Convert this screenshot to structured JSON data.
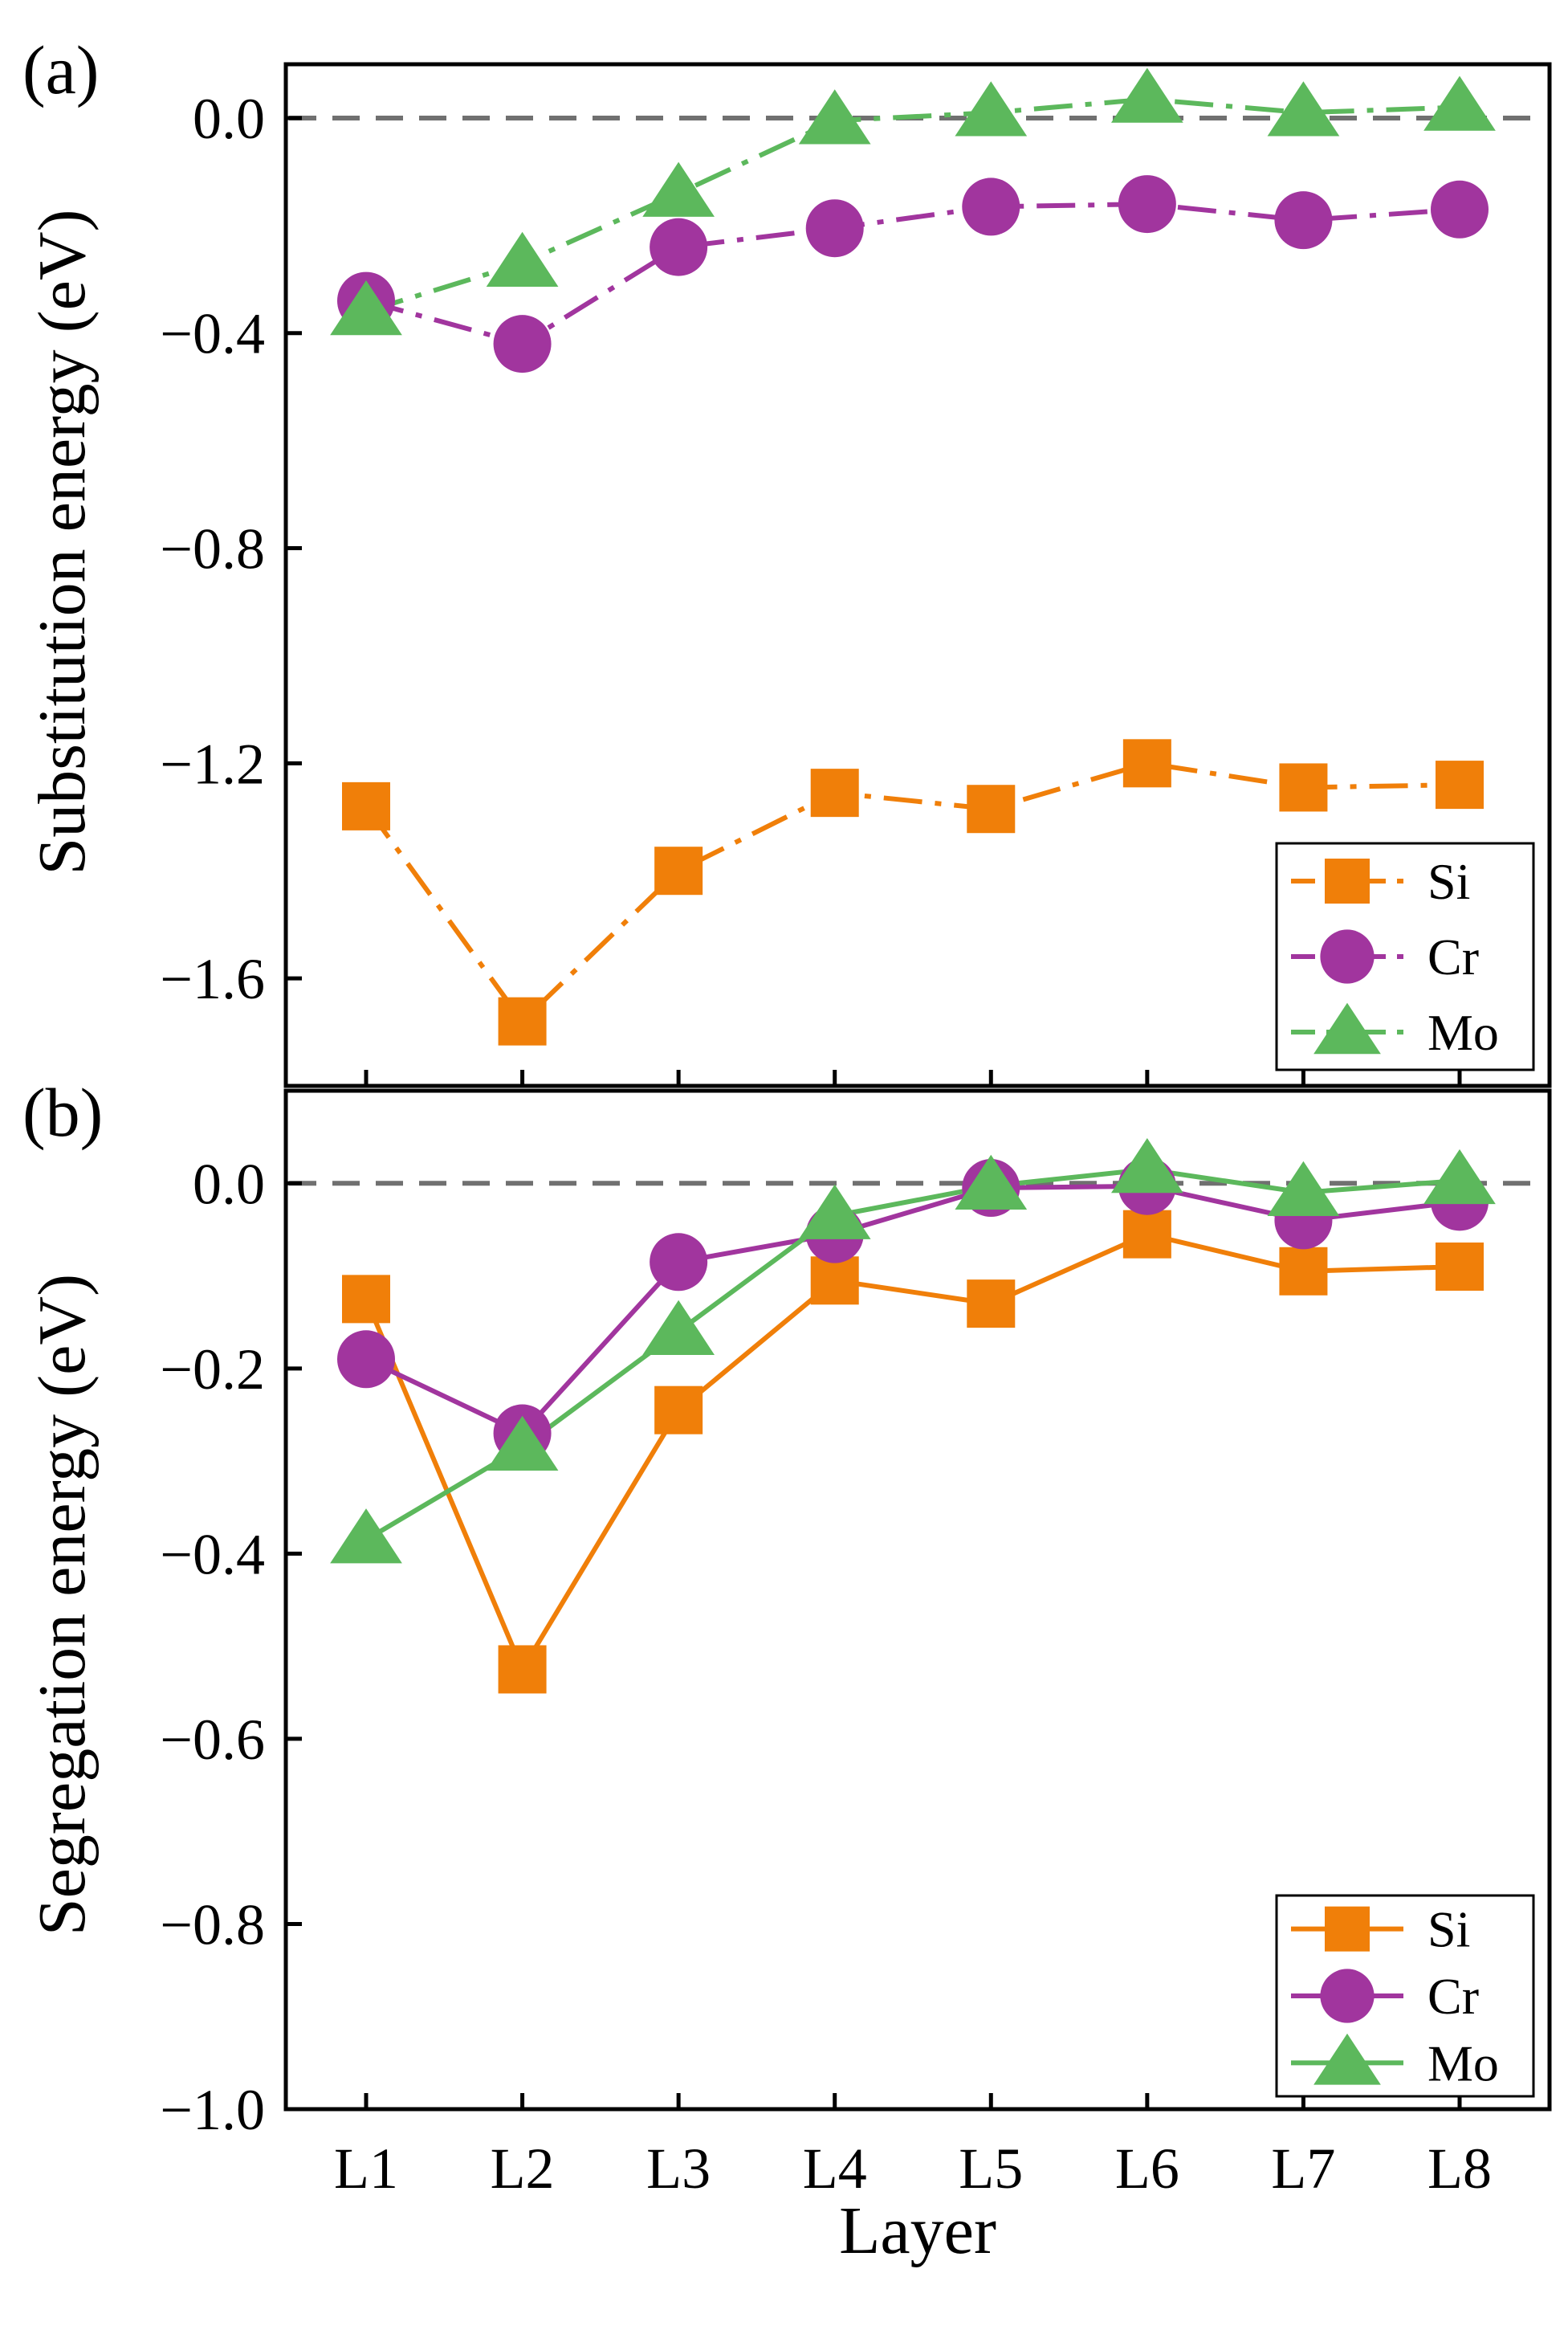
{
  "colors": {
    "Si": "#F07F09",
    "Cr": "#A1359E",
    "Mo": "#5CB85C",
    "zero_line": "#707070"
  },
  "chart_data": [
    {
      "type": "line",
      "panel_label": "(a)",
      "ylabel": "Substitution energy (eV)",
      "xlabel": "",
      "categories": [
        "L1",
        "L2",
        "L3",
        "L4",
        "L5",
        "L6",
        "L7",
        "L8"
      ],
      "ylim": [
        -1.8,
        0.1
      ],
      "yticks": [
        0.0,
        -0.4,
        -0.8,
        -1.2,
        -1.6
      ],
      "ytick_labels": [
        "0.0",
        "−0.4",
        "−0.8",
        "−1.2",
        "−1.6"
      ],
      "reference_line": 0.0,
      "line_style": "dashdot",
      "legend": "bottom-right",
      "series": [
        {
          "name": "Si",
          "marker": "square",
          "values": [
            -1.28,
            -1.68,
            -1.4,
            -1.255,
            -1.285,
            -1.2,
            -1.245,
            -1.24
          ]
        },
        {
          "name": "Cr",
          "marker": "circle",
          "values": [
            -0.34,
            -0.42,
            -0.24,
            -0.205,
            -0.165,
            -0.16,
            -0.19,
            -0.17
          ]
        },
        {
          "name": "Mo",
          "marker": "triangle",
          "values": [
            -0.36,
            -0.27,
            -0.14,
            -0.005,
            0.01,
            0.035,
            0.01,
            0.02
          ]
        }
      ]
    },
    {
      "type": "line",
      "panel_label": "(b)",
      "ylabel": "Segregation energy (eV)",
      "xlabel": "Layer",
      "categories": [
        "L1",
        "L2",
        "L3",
        "L4",
        "L5",
        "L6",
        "L7",
        "L8"
      ],
      "ylim": [
        -1.0,
        0.1
      ],
      "yticks": [
        0.0,
        -0.2,
        -0.4,
        -0.6,
        -0.8,
        -1.0
      ],
      "ytick_labels": [
        "0.0",
        "−0.2",
        "−0.4",
        "−0.6",
        "−0.8",
        "−1.0"
      ],
      "reference_line": 0.0,
      "line_style": "solid",
      "legend": "bottom-right",
      "series": [
        {
          "name": "Si",
          "marker": "square",
          "values": [
            -0.125,
            -0.525,
            -0.245,
            -0.105,
            -0.13,
            -0.055,
            -0.095,
            -0.09
          ]
        },
        {
          "name": "Cr",
          "marker": "circle",
          "values": [
            -0.19,
            -0.27,
            -0.085,
            -0.055,
            -0.005,
            -0.003,
            -0.04,
            -0.02
          ]
        },
        {
          "name": "Mo",
          "marker": "triangle",
          "values": [
            -0.385,
            -0.285,
            -0.16,
            -0.035,
            -0.003,
            0.015,
            -0.01,
            0.003
          ]
        }
      ]
    }
  ]
}
